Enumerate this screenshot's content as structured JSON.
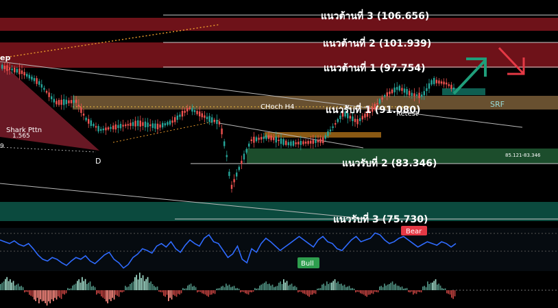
{
  "chart_data": {
    "type": "candlestick",
    "price_range": [
      70,
      112
    ],
    "resistance_levels": [
      {
        "label": "แนวต้านที่ 3 (106.656)",
        "value": 106.656,
        "zone": [
          105.8,
          107.6
        ]
      },
      {
        "label": "แนวต้านที่ 2 (101.939)",
        "value": 101.939,
        "zone": [
          98.4,
          102.6
        ]
      },
      {
        "label": "แนวต้านที่ 1 (97.754)",
        "value": 97.754,
        "zone": null
      }
    ],
    "support_levels": [
      {
        "label": "แนวรับที่ 1 (91.080)",
        "value": 91.08,
        "zone": [
          90.5,
          92.6
        ]
      },
      {
        "label": "แนวรับที่ 2 (83.346)",
        "value": 83.346,
        "zone": [
          83.3,
          85.1
        ]
      },
      {
        "label": "แนวรับที่ 3 (75.730)",
        "value": 75.73,
        "zone": [
          75.3,
          77.3
        ]
      }
    ],
    "annotations": {
      "choch": "CHoch H4",
      "retest": "Retest",
      "srf": "SRF",
      "zone_range": "85.121-83.346",
      "pattern": "Shark Pttn",
      "pattern_ratio": "1.565",
      "point_d": "D",
      "partial_left_top": "ep",
      "partial_left_mid": "9"
    },
    "rsi": {
      "label_bear": "Bear",
      "label_bull": "Bull",
      "values": [
        62,
        60,
        58,
        61,
        57,
        55,
        58,
        52,
        45,
        40,
        38,
        42,
        40,
        36,
        33,
        38,
        42,
        40,
        44,
        38,
        35,
        40,
        45,
        48,
        40,
        36,
        30,
        34,
        42,
        46,
        52,
        50,
        47,
        55,
        58,
        54,
        60,
        52,
        48,
        56,
        62,
        58,
        55,
        64,
        68,
        60,
        58,
        50,
        42,
        46,
        55,
        40,
        36,
        52,
        48,
        58,
        64,
        60,
        55,
        50,
        54,
        58,
        62,
        66,
        62,
        58,
        54,
        62,
        66,
        60,
        58,
        52,
        50,
        56,
        62,
        66,
        60,
        62,
        64,
        70,
        68,
        62,
        58,
        60,
        64,
        66,
        62,
        58,
        54,
        57,
        60,
        58,
        56,
        60,
        58,
        54,
        58
      ]
    },
    "histogram": {
      "values": [
        4,
        6,
        5,
        3,
        2,
        -1,
        -3,
        -5,
        -6,
        -7,
        -6,
        -5,
        -4,
        -2,
        1,
        3,
        5,
        6,
        4,
        2,
        -2,
        -4,
        -6,
        -5,
        -3,
        -1,
        2,
        4,
        7,
        8,
        6,
        4,
        2,
        -1,
        -3,
        -5,
        -3,
        -2,
        1,
        3,
        2,
        -1,
        -2,
        -3,
        -2,
        1,
        2,
        3,
        2,
        1,
        -1,
        -2,
        -1,
        1,
        3,
        4,
        3,
        2,
        4,
        5,
        3,
        2,
        -1,
        -2,
        -3,
        -2,
        1,
        3,
        4,
        5,
        4,
        3,
        2,
        1,
        -1,
        -2,
        -3,
        -2,
        -1,
        2,
        3,
        4,
        3,
        2,
        1,
        -1,
        -2,
        -1,
        2,
        4,
        5,
        3,
        1,
        -2,
        -4
      ]
    },
    "colors": {
      "resistance_zone": "#8b1a22",
      "support_gold": "#8c6a3c",
      "support_green": "#1b4d2e",
      "support_teal": "#0c4d42",
      "candle_up": "#26a69a",
      "candle_down": "#ef5350",
      "rsi_line": "#2f6bff",
      "arrow_up": "#1f9e7a",
      "arrow_down": "#e53945",
      "bear_badge": "#e53945",
      "bull_badge": "#2e9e4e"
    }
  }
}
